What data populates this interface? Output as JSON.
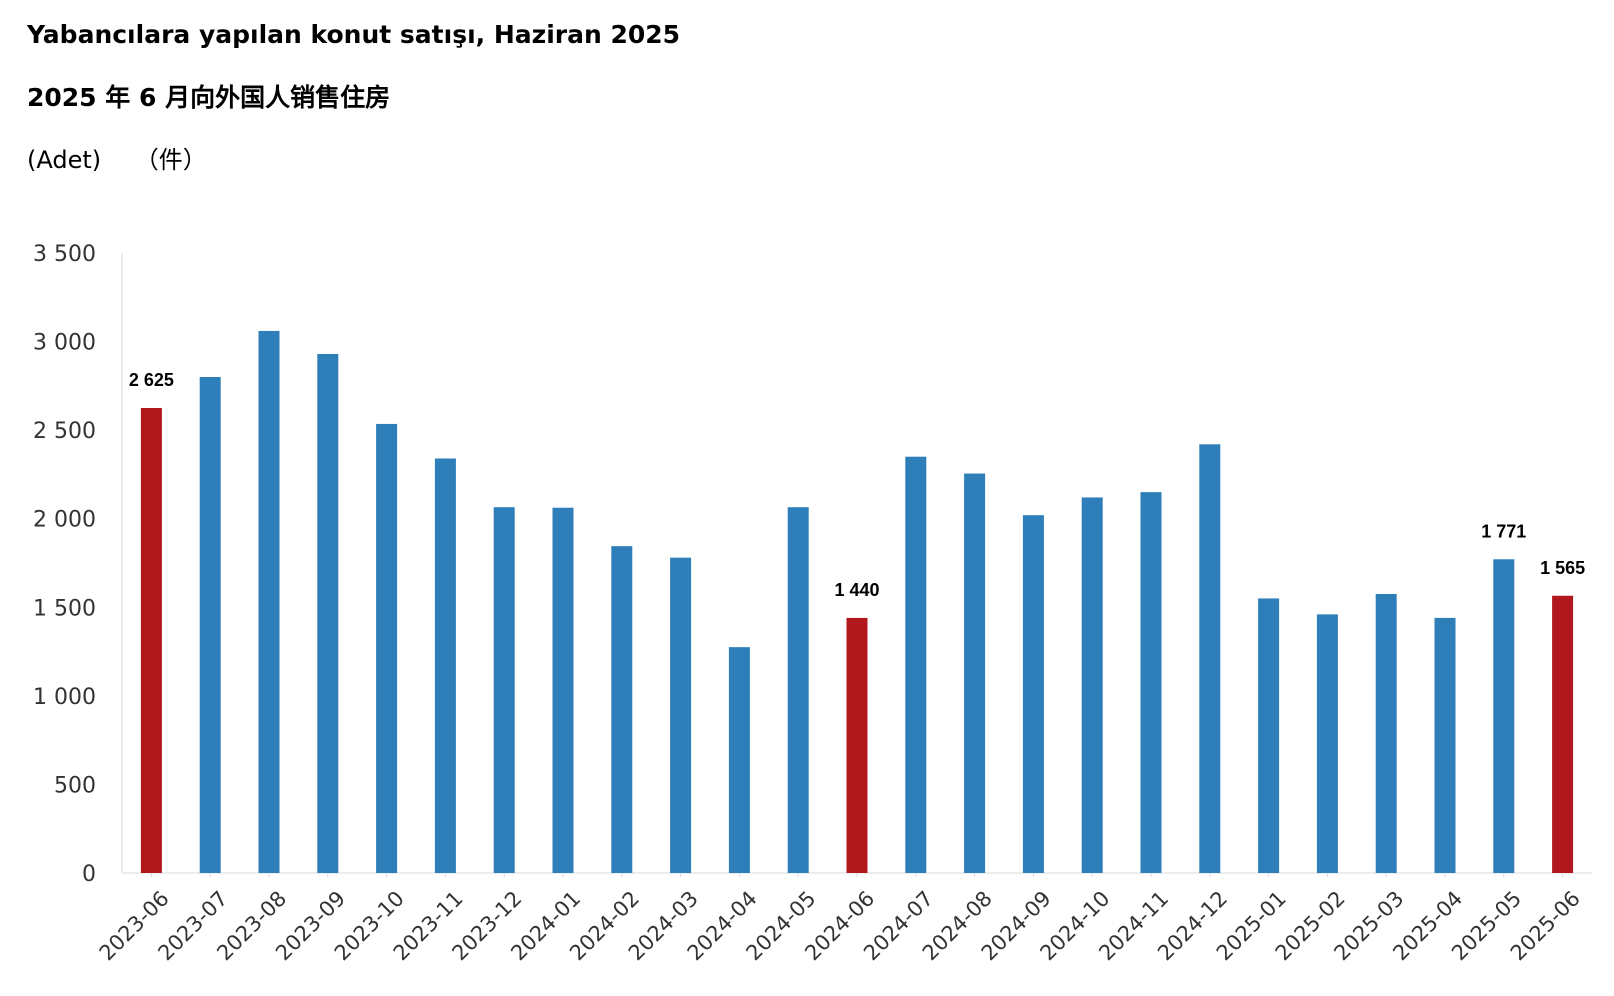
{
  "title": "Yabancılara yapılan konut satışı, Haziran 2025",
  "subtitle": "2025 年 6 月向外国人销售住房",
  "unit_tr": "(Adet)",
  "unit_cn": "（件）",
  "colors": {
    "default_bar": "#2e7eba",
    "highlight_bar": "#b0181e",
    "axis": "#d9d9d9"
  },
  "chart_data": {
    "type": "bar",
    "title": "Yabancılara yapılan konut satışı, Haziran 2025",
    "subtitle": "2025 年 6 月向外国人销售住房",
    "ylabel": "(Adet) （件）",
    "xlabel": "",
    "ylim": [
      0,
      3500
    ],
    "yticks": [
      0,
      500,
      1000,
      1500,
      2000,
      2500,
      3000,
      3500
    ],
    "ytick_labels": [
      "0",
      "500",
      "1 000",
      "1 500",
      "2 000",
      "2 500",
      "3 000",
      "3 500"
    ],
    "grid": false,
    "legend": "none",
    "categories": [
      "2023-06",
      "2023-07",
      "2023-08",
      "2023-09",
      "2023-10",
      "2023-11",
      "2023-12",
      "2024-01",
      "2024-02",
      "2024-03",
      "2024-04",
      "2024-05",
      "2024-06",
      "2024-07",
      "2024-08",
      "2024-09",
      "2024-10",
      "2024-11",
      "2024-12",
      "2025-01",
      "2025-02",
      "2025-03",
      "2025-04",
      "2025-05",
      "2025-06"
    ],
    "values": [
      2625,
      2800,
      3060,
      2930,
      2535,
      2340,
      2065,
      2062,
      1845,
      1780,
      1275,
      2065,
      1440,
      2350,
      2255,
      2020,
      2120,
      2150,
      2420,
      1550,
      1460,
      1575,
      1440,
      1771,
      1565
    ],
    "highlighted": [
      true,
      false,
      false,
      false,
      false,
      false,
      false,
      false,
      false,
      false,
      false,
      false,
      true,
      false,
      false,
      false,
      false,
      false,
      false,
      false,
      false,
      false,
      false,
      false,
      true
    ],
    "data_labels": [
      {
        "index": 0,
        "text": "2 625"
      },
      {
        "index": 12,
        "text": "1 440"
      },
      {
        "index": 23,
        "text": "1 771"
      },
      {
        "index": 24,
        "text": "1 565"
      }
    ]
  }
}
